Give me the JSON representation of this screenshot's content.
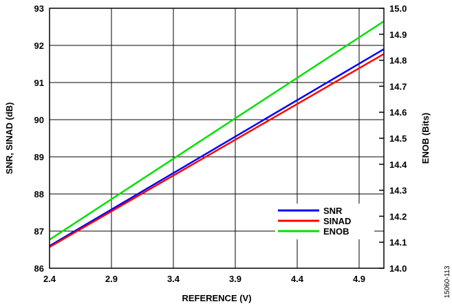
{
  "chart_data": {
    "type": "line",
    "xlabel": "REFERENCE (V)",
    "ylabel": "SNR, SINAD (dB)",
    "y2label": "ENOB (Bits)",
    "xlim": [
      2.4,
      5.1
    ],
    "ylim": [
      86,
      93
    ],
    "y2lim": [
      14.0,
      15.0
    ],
    "x_ticks": [
      "2.4",
      "2.9",
      "3.4",
      "3.9",
      "4.4",
      "4.9"
    ],
    "y_ticks": [
      "86",
      "87",
      "88",
      "89",
      "90",
      "91",
      "92",
      "93"
    ],
    "y2_ticks": [
      "14.0",
      "14.1",
      "14.2",
      "14.3",
      "14.4",
      "14.5",
      "14.6",
      "14.7",
      "14.8",
      "14.9",
      "15.0"
    ],
    "grid": true,
    "legend_position": "bottom-right",
    "series": [
      {
        "name": "SNR",
        "axis": "left",
        "color": "#0000ff",
        "x": [
          2.4,
          5.1
        ],
        "y": [
          86.6,
          91.9
        ]
      },
      {
        "name": "SINAD",
        "axis": "left",
        "color": "#ff0000",
        "x": [
          2.4,
          5.1
        ],
        "y": [
          86.57,
          91.77
        ]
      },
      {
        "name": "ENOB",
        "axis": "right",
        "color": "#00e000",
        "x": [
          2.4,
          5.1
        ],
        "y": [
          14.11,
          14.95
        ]
      }
    ]
  },
  "figure_id": "15060-113"
}
